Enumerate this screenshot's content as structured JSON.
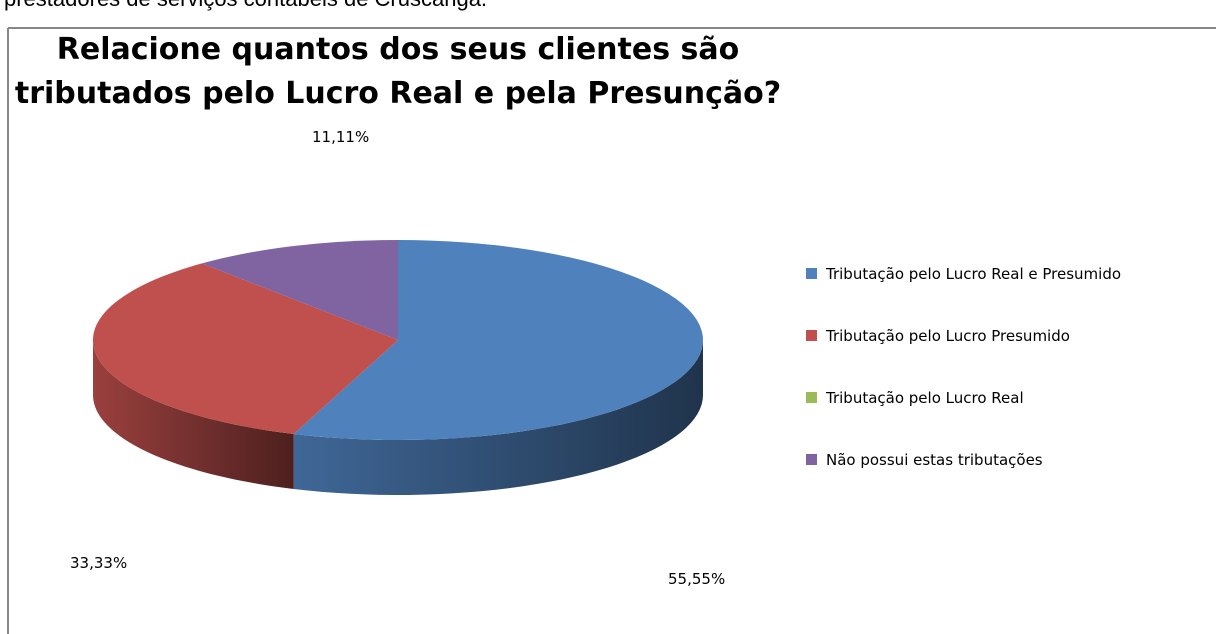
{
  "page_text": "prestadores de serviços contábeis de Cruscanga.",
  "chart_data": {
    "type": "pie",
    "title": [
      "Relacione quantos dos seus clientes são",
      "tributados pelo Lucro Real e pela Presunção?"
    ],
    "categories": [
      "Tributação pelo Lucro Real e Presumido",
      "Tributação pelo Lucro Presumido",
      "Tributação pelo Lucro Real",
      "Não possui estas tributações"
    ],
    "values": [
      55.55,
      33.33,
      0,
      11.11
    ],
    "value_labels": [
      "55,55%",
      "33,33%",
      null,
      "11,11%"
    ],
    "colors": [
      "#4f81bd",
      "#c0504d",
      "#9bbb59",
      "#8064a2"
    ],
    "legend": "right"
  }
}
